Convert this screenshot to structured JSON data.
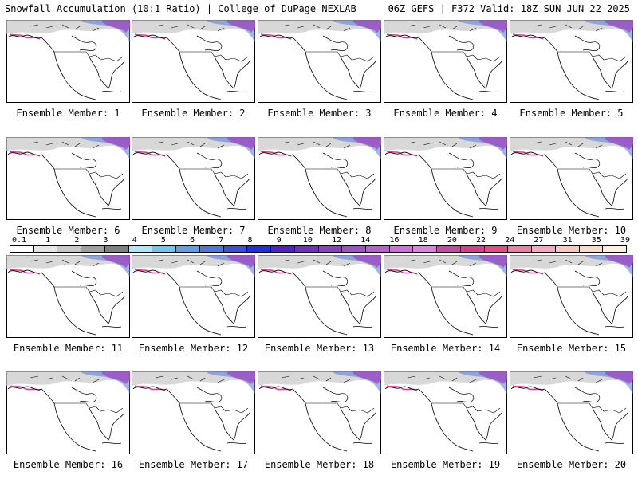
{
  "header": {
    "title_left": "Snowfall Accumulation (10:1 Ratio) | College of DuPage NEXLAB",
    "title_right": "06Z GEFS | F372 Valid: 18Z SUN JUN 22 2025"
  },
  "panels": [
    {
      "caption": "Ensemble Member: 1"
    },
    {
      "caption": "Ensemble Member: 2"
    },
    {
      "caption": "Ensemble Member: 3"
    },
    {
      "caption": "Ensemble Member: 4"
    },
    {
      "caption": "Ensemble Member: 5"
    },
    {
      "caption": "Ensemble Member: 6"
    },
    {
      "caption": "Ensemble Member: 7"
    },
    {
      "caption": "Ensemble Member: 8"
    },
    {
      "caption": "Ensemble Member: 9"
    },
    {
      "caption": "Ensemble Member: 10"
    },
    {
      "caption": "Ensemble Member: 11"
    },
    {
      "caption": "Ensemble Member: 12"
    },
    {
      "caption": "Ensemble Member: 13"
    },
    {
      "caption": "Ensemble Member: 14"
    },
    {
      "caption": "Ensemble Member: 15"
    },
    {
      "caption": "Ensemble Member: 16"
    },
    {
      "caption": "Ensemble Member: 17"
    },
    {
      "caption": "Ensemble Member: 18"
    },
    {
      "caption": "Ensemble Member: 19"
    },
    {
      "caption": "Ensemble Member: 20"
    }
  ],
  "colorbar": {
    "labels": [
      "0.1",
      "1",
      "2",
      "3",
      "4",
      "5",
      "6",
      "7",
      "8",
      "9",
      "10",
      "12",
      "14",
      "16",
      "18",
      "20",
      "22",
      "24",
      "27",
      "31",
      "35",
      "39"
    ],
    "colors": [
      "#ffffff",
      "#e6e6e6",
      "#c8c8c8",
      "#a0a0a0",
      "#808080",
      "#a8e8f8",
      "#70c8f0",
      "#60a0e8",
      "#4c78e0",
      "#3a50d8",
      "#2030e0",
      "#5020c8",
      "#7030c0",
      "#8a40c0",
      "#a050c8",
      "#b860d0",
      "#d070d8",
      "#e080e0",
      "#c84aa0",
      "#d83c8c",
      "#e84a88",
      "#f07aa8",
      "#f8a8c0",
      "#f8c8c0",
      "#f8dcc8",
      "#fff0e0"
    ]
  },
  "colors": {
    "coast": "#000000",
    "snow_light": "#c8c8c8",
    "snow_blue": "#5a78e0",
    "snow_purple": "#a040c0",
    "snow_magenta": "#d83c8c"
  }
}
